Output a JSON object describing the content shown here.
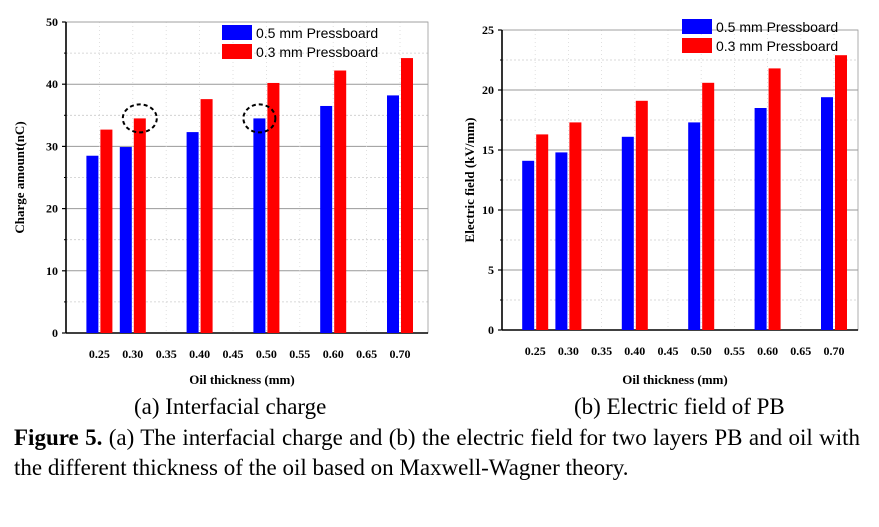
{
  "chart_data": [
    {
      "type": "bar",
      "xlabel": "Oil thickness (mm)",
      "ylabel": "Charge amount(nC)",
      "ylim": [
        0,
        50
      ],
      "yticks": [
        "0",
        "10",
        "20",
        "30",
        "40",
        "50"
      ],
      "categories": [
        "0.25",
        "0.30",
        "0.35",
        "0.40",
        "0.45",
        "0.50",
        "0.55",
        "0.60",
        "0.65",
        "0.70"
      ],
      "series": [
        {
          "name": "0.5 mm Pressboard",
          "color": "#0000ff",
          "values": [
            28.5,
            29.9,
            null,
            32.3,
            null,
            34.5,
            null,
            36.5,
            null,
            38.2
          ]
        },
        {
          "name": "0.3 mm Pressboard",
          "color": "#ff0000",
          "values": [
            32.7,
            34.5,
            null,
            37.6,
            null,
            40.2,
            null,
            42.2,
            null,
            44.2
          ]
        }
      ],
      "legend": "top-right",
      "grid": true,
      "annotations": "dashed circles around 0.3 mm Pressboard bar at 0.30 and 0.5 mm Pressboard bar at 0.50",
      "subcaption": "(a) Interfacial charge"
    },
    {
      "type": "bar",
      "xlabel": "Oil thickness (mm)",
      "ylabel": "Electric field (kV/mm)",
      "ylim": [
        0,
        25
      ],
      "yticks": [
        "0",
        "5",
        "10",
        "15",
        "20",
        "25"
      ],
      "categories": [
        "0.25",
        "0.30",
        "0.35",
        "0.40",
        "0.45",
        "0.50",
        "0.55",
        "0.60",
        "0.65",
        "0.70"
      ],
      "series": [
        {
          "name": "0.5 mm Pressboard",
          "color": "#0000ff",
          "values": [
            14.1,
            14.8,
            null,
            16.1,
            null,
            17.3,
            null,
            18.5,
            null,
            19.4
          ]
        },
        {
          "name": "0.3 mm Pressboard",
          "color": "#ff0000",
          "values": [
            16.3,
            17.3,
            null,
            19.1,
            null,
            20.6,
            null,
            21.8,
            null,
            22.9
          ]
        }
      ],
      "legend": "top-left",
      "grid": true,
      "subcaption": "(b) Electric field of PB"
    }
  ],
  "figure_caption": {
    "label": "Figure 5.",
    "text": " (a) The interfacial charge and (b) the electric field for two layers PB and oil with the different thickness of the oil based on Maxwell-Wagner theory."
  }
}
